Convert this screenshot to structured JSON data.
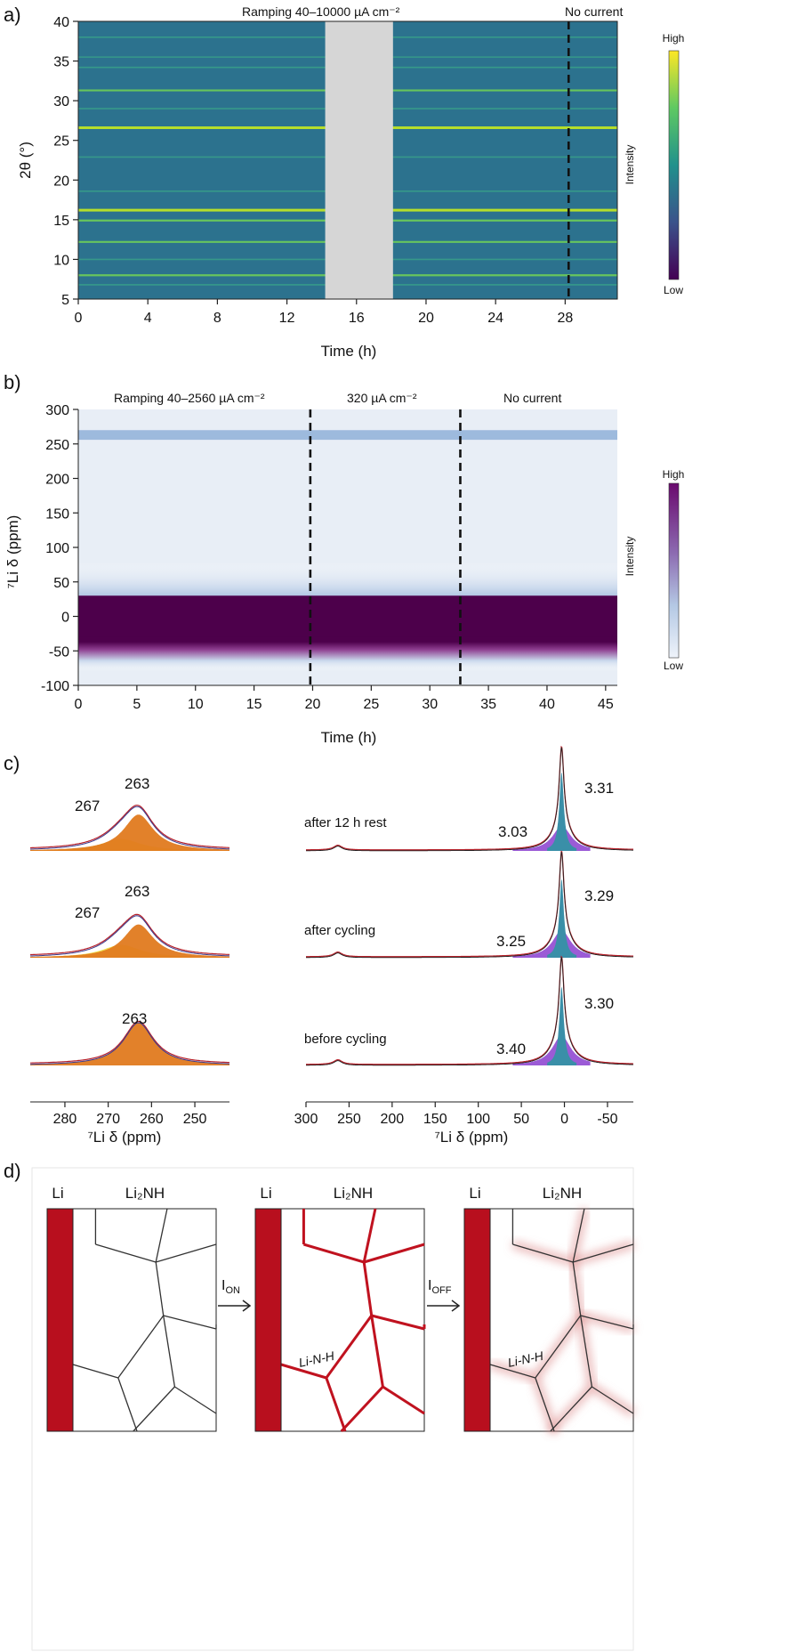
{
  "colors": {
    "viridis_bg": "#2c728e",
    "viridis_line": "#6ece58",
    "viridis_bright": "#b5de2b",
    "gap": "#d6d6d6",
    "nmr_dark": "#4d004b",
    "nmr_light": "#e8eef6",
    "nmr_band": "#8fb0d8",
    "li_metal": "#b80f1e",
    "orange_peak": "#e07a1f",
    "yellow_peak": "#f0e050",
    "purple_peak": "#9b5bd6",
    "teal_peak": "#3a8fa8"
  },
  "panels": {
    "a": {
      "label": "a)",
      "annotation_ramp": "Ramping 40–10000 µA cm⁻²",
      "annotation_nocurrent": "No current",
      "colorbar": {
        "title": "Intensity",
        "high": "High",
        "low": "Low"
      }
    },
    "b": {
      "label": "b)",
      "annotation_ramp": "Ramping 40–2560 µA cm⁻²",
      "annotation_mid": "320 µA cm⁻²",
      "annotation_nocurrent": "No current",
      "colorbar": {
        "title": "Intensity",
        "high": "High",
        "low": "Low"
      }
    },
    "c": {
      "label": "c)",
      "spectra": [
        {
          "condition": "after 12 h rest",
          "left_labels": [
            "267",
            "263"
          ],
          "right_labels": [
            "3.31",
            "3.03"
          ]
        },
        {
          "condition": "after cycling",
          "left_labels": [
            "267",
            "263"
          ],
          "right_labels": [
            "3.29",
            "3.25"
          ]
        },
        {
          "condition": "before cycling",
          "left_labels": [
            "263"
          ],
          "right_labels": [
            "3.30",
            "3.40"
          ]
        }
      ]
    },
    "d": {
      "label": "d)",
      "li_label": "Li",
      "li2nh_label": "Li₂NH",
      "ion_label": "I",
      "ion_sub": "ON",
      "ioff_label": "I",
      "ioff_sub": "OFF",
      "phase_label": "Li-N-H"
    }
  },
  "chart_data": [
    {
      "type": "heatmap",
      "panel": "a",
      "xlabel": "Time (h)",
      "ylabel": "2θ (°)",
      "xlim": [
        0,
        31
      ],
      "ylim": [
        5,
        40
      ],
      "xticks": [
        0,
        4,
        8,
        12,
        16,
        20,
        24,
        28
      ],
      "yticks": [
        5,
        10,
        15,
        20,
        25,
        30,
        35,
        40
      ],
      "colormap": "viridis",
      "data_gap_h": [
        14.2,
        18.1
      ],
      "dashed_marker_h": 28.2,
      "reflections_2theta": [
        {
          "pos": 6.8,
          "level": "weak"
        },
        {
          "pos": 8.0,
          "level": "medium"
        },
        {
          "pos": 10.0,
          "level": "weak"
        },
        {
          "pos": 12.2,
          "level": "medium"
        },
        {
          "pos": 14.9,
          "level": "medium"
        },
        {
          "pos": 16.2,
          "level": "strong"
        },
        {
          "pos": 18.6,
          "level": "weak"
        },
        {
          "pos": 22.9,
          "level": "weak"
        },
        {
          "pos": 26.6,
          "level": "strong"
        },
        {
          "pos": 29.0,
          "level": "weak"
        },
        {
          "pos": 31.3,
          "level": "medium"
        },
        {
          "pos": 34.2,
          "level": "weak"
        },
        {
          "pos": 35.5,
          "level": "weak"
        },
        {
          "pos": 38.0,
          "level": "weak"
        }
      ]
    },
    {
      "type": "heatmap",
      "panel": "b",
      "xlabel": "Time (h)",
      "ylabel": "⁷Li δ (ppm)",
      "xlim": [
        0,
        46
      ],
      "ylim": [
        -100,
        300
      ],
      "xticks": [
        0,
        5,
        10,
        15,
        20,
        25,
        30,
        35,
        40,
        45
      ],
      "yticks": [
        -100,
        -50,
        0,
        50,
        100,
        150,
        200,
        250,
        300
      ],
      "colormap": "blue-purple",
      "dashed_markers_h": [
        19.8,
        32.6
      ],
      "signals_ppm": [
        {
          "center": 263,
          "halfwidth": 7,
          "level": "medium"
        },
        {
          "center": 0,
          "halfwidth": 30,
          "level": "max"
        },
        {
          "center": 0,
          "halfwidth": 80,
          "level": "diffuse"
        }
      ]
    },
    {
      "type": "line",
      "panel": "c-left",
      "xlabel": "⁷Li  δ (ppm)",
      "xlim": [
        288,
        242
      ],
      "xticks": [
        280,
        270,
        260,
        250
      ],
      "series": [
        {
          "name": "after 12 h rest",
          "components": [
            {
              "center": 263,
              "height": 0.85
            },
            {
              "center": 267,
              "height": 0.28
            }
          ]
        },
        {
          "name": "after cycling",
          "components": [
            {
              "center": 263,
              "height": 0.78
            },
            {
              "center": 267,
              "height": 0.3
            }
          ]
        },
        {
          "name": "before cycling",
          "components": [
            {
              "center": 263,
              "height": 1.0
            }
          ]
        }
      ]
    },
    {
      "type": "line",
      "panel": "c-right",
      "xlabel": "⁷Li δ (ppm)",
      "xlim": [
        300,
        -80
      ],
      "xticks": [
        300,
        250,
        200,
        150,
        100,
        50,
        0,
        -50
      ],
      "series": [
        {
          "name": "after 12 h rest",
          "peaks": [
            {
              "center": 3.31,
              "height": 1.0
            },
            {
              "center": 3.03,
              "height": 0.32
            }
          ]
        },
        {
          "name": "after cycling",
          "peaks": [
            {
              "center": 3.29,
              "height": 1.0
            },
            {
              "center": 3.25,
              "height": 0.35
            }
          ]
        },
        {
          "name": "before cycling",
          "peaks": [
            {
              "center": 3.3,
              "height": 1.0
            },
            {
              "center": 3.4,
              "height": 0.38
            }
          ]
        }
      ]
    }
  ]
}
